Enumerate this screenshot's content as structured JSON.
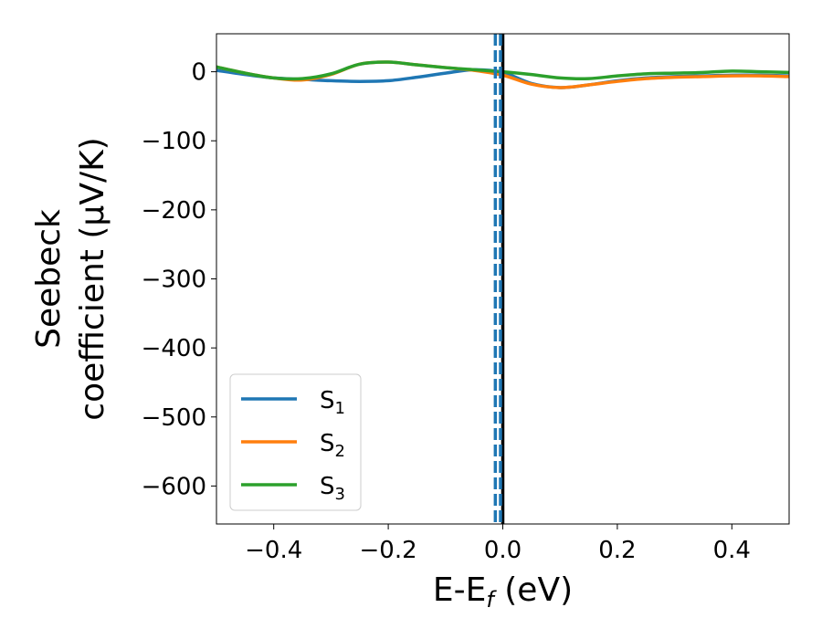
{
  "chart_data": {
    "type": "line",
    "xlabel": {
      "main": "E-E",
      "sub": "f",
      "suffix": " (eV)"
    },
    "ylabel": {
      "line1": "Seebeck",
      "line2": "coefficient  (μV/K)"
    },
    "xlim": [
      -0.5,
      0.5
    ],
    "ylim": [
      -655,
      55
    ],
    "xticks": [
      -0.4,
      -0.2,
      0.0,
      0.2,
      0.4
    ],
    "xtick_labels": [
      "−0.4",
      "−0.2",
      "0.0",
      "0.2",
      "0.4"
    ],
    "yticks": [
      0,
      -100,
      -200,
      -300,
      -400,
      -500,
      -600
    ],
    "ytick_labels": [
      "0",
      "−100",
      "−200",
      "−300",
      "−400",
      "−500",
      "−600"
    ],
    "grid": false,
    "legend_position": "lower-left",
    "series": [
      {
        "name": "S",
        "sub": "1",
        "color": "#1f77b4",
        "x": [
          -0.5,
          -0.45,
          -0.4,
          -0.35,
          -0.3,
          -0.25,
          -0.2,
          -0.15,
          -0.1,
          -0.05,
          0.0,
          0.05,
          0.1,
          0.15,
          0.2,
          0.25,
          0.3,
          0.35,
          0.4,
          0.45,
          0.5
        ],
        "y": [
          2,
          -4,
          -9,
          -11,
          -13,
          -14,
          -13,
          -8,
          -2,
          3,
          -1,
          -17,
          -23,
          -19,
          -13,
          -9,
          -7,
          -6,
          -5,
          -5,
          -6
        ]
      },
      {
        "name": "S",
        "sub": "2",
        "color": "#ff7f0e",
        "x": [
          -0.5,
          -0.45,
          -0.4,
          -0.35,
          -0.3,
          -0.25,
          -0.2,
          -0.15,
          -0.1,
          -0.05,
          0.0,
          0.05,
          0.1,
          0.15,
          0.2,
          0.25,
          0.3,
          0.35,
          0.4,
          0.45,
          0.5
        ],
        "y": [
          7,
          -2,
          -9,
          -12,
          -4,
          11,
          14,
          10,
          6,
          2,
          -5,
          -18,
          -23,
          -19,
          -14,
          -10,
          -8,
          -7,
          -6,
          -6,
          -7
        ]
      },
      {
        "name": "S",
        "sub": "3",
        "color": "#2ca02c",
        "x": [
          -0.5,
          -0.45,
          -0.4,
          -0.35,
          -0.3,
          -0.25,
          -0.2,
          -0.15,
          -0.1,
          -0.05,
          0.0,
          0.05,
          0.1,
          0.15,
          0.2,
          0.25,
          0.3,
          0.35,
          0.4,
          0.45,
          0.5
        ],
        "y": [
          7,
          -2,
          -9,
          -10,
          -3,
          11,
          14,
          10,
          6,
          3,
          0,
          -4,
          -9,
          -10,
          -6,
          -3,
          -2,
          -1,
          1,
          0,
          -1
        ]
      }
    ],
    "vlines": [
      {
        "x": 0.0,
        "color": "#000000",
        "style": "solid"
      },
      {
        "x": -0.013,
        "color": "#1f77b4",
        "style": "dashed"
      },
      {
        "x": -0.004,
        "color": "#1f77b4",
        "style": "dashed"
      }
    ]
  }
}
